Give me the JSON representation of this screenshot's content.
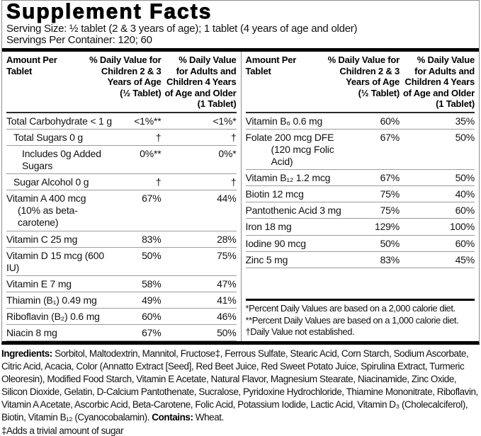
{
  "header": {
    "title": "Supplement Facts",
    "serving_size": "Serving Size: ½ tablet (2 & 3 years of age); 1 tablet (4 years of age and older)",
    "servings_per_container": "Servings Per Container: 120; 60"
  },
  "table": {
    "columns": {
      "amount": "Amount Per\nTablet",
      "children": "% Daily Value for\nChildren 2 & 3\nYears of Age\n(½ Tablet)",
      "adults": "% Daily Value\nfor Adults and\nChildren 4 Years\nof Age and Older\n(1 Tablet)"
    },
    "left_rows": [
      {
        "name": "Total Carbohydrate < 1 g",
        "children": "<1%**",
        "adults": "<1%*"
      },
      {
        "name": "Total Sugars 0 g",
        "children": "†",
        "adults": "†"
      },
      {
        "name": "Includes 0g Added Sugars",
        "children": "0%**",
        "adults": "0%*"
      },
      {
        "name": "Sugar Alcohol 0 g",
        "children": "†",
        "adults": "†"
      },
      {
        "name": "Vitamin A 400 mcg",
        "note": "(10% as beta-carotene)",
        "children": "67%",
        "adults": "44%"
      },
      {
        "name": "Vitamin C 25 mg",
        "children": "83%",
        "adults": "28%"
      },
      {
        "name": "Vitamin D 15 mcg (600 IU)",
        "children": "50%",
        "adults": "75%"
      },
      {
        "name": "Vitamin E 7 mg",
        "children": "58%",
        "adults": "47%"
      },
      {
        "name": "Thiamin (B₁) 0.49 mg",
        "children": "49%",
        "adults": "41%"
      },
      {
        "name": "Riboflavin (B₂) 0.6 mg",
        "children": "60%",
        "adults": "46%"
      },
      {
        "name": "Niacin 8 mg",
        "children": "67%",
        "adults": "50%"
      }
    ],
    "right_rows": [
      {
        "name": "Vitamin B₆ 0.6 mg",
        "children": "60%",
        "adults": "35%"
      },
      {
        "name": "Folate 200 mcg DFE",
        "note": "(120 mcg Folic Acid)",
        "children": "67%",
        "adults": "50%"
      },
      {
        "name": "Vitamin B₁₂ 1.2 mcg",
        "children": "67%",
        "adults": "50%"
      },
      {
        "name": "Biotin 12 mcg",
        "children": "75%",
        "adults": "40%"
      },
      {
        "name": "Pantothenic Acid 3 mg",
        "children": "75%",
        "adults": "60%"
      },
      {
        "name": "Iron 18 mg",
        "children": "129%",
        "adults": "100%"
      },
      {
        "name": "Iodine 90 mcg",
        "children": "50%",
        "adults": "60%"
      },
      {
        "name": "Zinc 5 mg",
        "children": "83%",
        "adults": "45%"
      }
    ],
    "footnotes": [
      "*Percent Daily Values are based on a 2,000 calorie diet.",
      "**Percent Daily Values are based on a 1,000 calorie diet.",
      "†Daily Value not established."
    ]
  },
  "ingredients": {
    "label": "Ingredients:",
    "text": " Sorbitol, Maltodextrin, Mannitol, Fructose‡, Ferrous Sulfate, Stearic Acid, Corn Starch, Sodium Ascorbate, Citric Acid, Acacia, Color (Annatto Extract [Seed], Red Beet Juice, Red Sweet Potato Juice, Spirulina Extract, Turmeric Oleoresin), Modified Food Starch, Vitamin E Acetate, Natural Flavor, Magnesium Stearate, Niacinamide, Zinc Oxide, Silicon Dioxide, Gelatin, D-Calcium Pantothenate, Sucralose, Pyridoxine Hydrochloride, Thiamine Mononitrate, Riboflavin, Vitamin A Acetate, Ascorbic Acid, Beta-Carotene, Folic Acid, Potassium Iodide, Lactic Acid, Vitamin D₃ (Cholecalciferol), Biotin, Vitamin B₁₂ (Cyanocobalamin). ",
    "contains_label": "Contains:",
    "contains_value": " Wheat.",
    "sugar_footnote": "‡Adds a trivial amount of sugar"
  }
}
